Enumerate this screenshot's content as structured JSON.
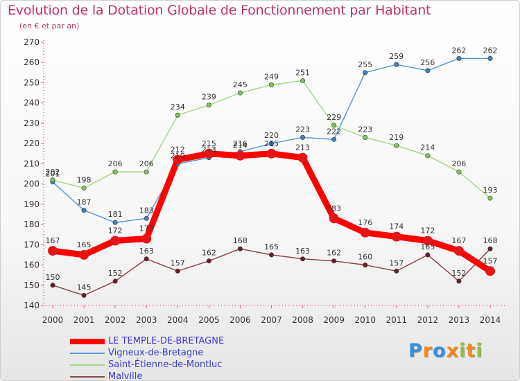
{
  "chart_data": {
    "type": "line",
    "title": "Evolution de la Dotation Globale de Fonctionnement par Habitant",
    "subtitle": "(en € et par an)",
    "x": [
      "2000",
      "2001",
      "2002",
      "2003",
      "2004",
      "2005",
      "2006",
      "2007",
      "2008",
      "2009",
      "2010",
      "2011",
      "2012",
      "2013",
      "2014"
    ],
    "ylim": [
      140,
      270
    ],
    "yticks": [
      140,
      150,
      160,
      170,
      180,
      190,
      200,
      210,
      220,
      230,
      240,
      250,
      260,
      270
    ],
    "grid": false,
    "legend_position": "bottom-left",
    "series": [
      {
        "name": "Vigneux-de-Bretagne",
        "color": "#5a9ad6",
        "marker": "#3f7fc2",
        "values": [
          201,
          187,
          181,
          183,
          210,
          213,
          216,
          220,
          223,
          222,
          255,
          259,
          256,
          262,
          262
        ]
      },
      {
        "name": "Saint-Étienne-de-Montluc",
        "color": "#a6d98a",
        "marker": "#7cc85a",
        "values": [
          202,
          198,
          206,
          206,
          234,
          239,
          245,
          249,
          251,
          229,
          223,
          219,
          214,
          206,
          193
        ]
      },
      {
        "name": "Malville",
        "color": "#8b4a4a",
        "marker": "#6b1e24",
        "values": [
          150,
          145,
          152,
          163,
          157,
          162,
          168,
          165,
          163,
          162,
          160,
          157,
          165,
          152,
          168
        ]
      },
      {
        "name": "LE TEMPLE-DE-BRETAGNE",
        "color": "#ff0000",
        "marker": "#e51515",
        "highlight": true,
        "values": [
          167,
          165,
          172,
          173,
          212,
          215,
          214,
          215,
          213,
          183,
          176,
          174,
          172,
          167,
          157
        ]
      }
    ]
  },
  "legend": {
    "items": [
      {
        "label": "LE TEMPLE-DE-BRETAGNE",
        "color": "#ff0000"
      },
      {
        "label": "Vigneux-de-Bretagne",
        "color": "#5a9ad6"
      },
      {
        "label": "Saint-Étienne-de-Montluc",
        "color": "#a6d98a"
      },
      {
        "label": "Malville",
        "color": "#8b4a4a"
      }
    ]
  },
  "logo": {
    "letters": [
      "P",
      "r",
      "o",
      "x",
      "i",
      "t",
      "i"
    ],
    "colors": [
      "#3a8fd8",
      "#f08a1c",
      "#3a8fd8",
      "#f08a1c",
      "#8ac43a",
      "#f08a1c",
      "#8ac43a"
    ]
  }
}
